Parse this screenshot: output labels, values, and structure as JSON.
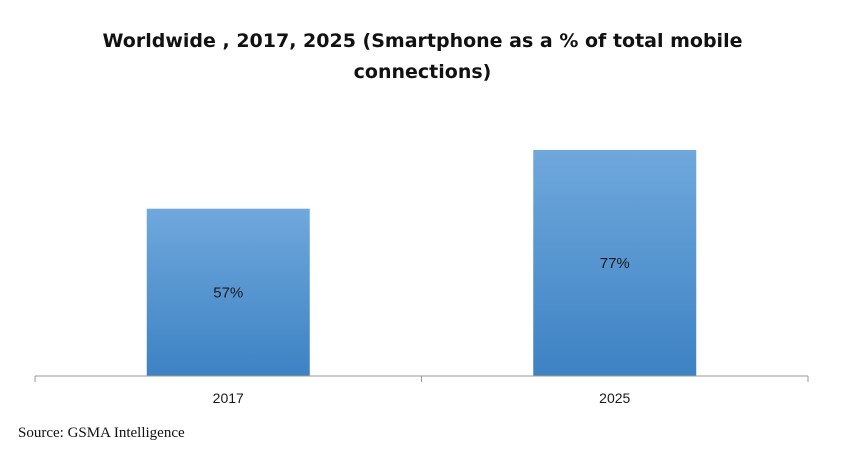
{
  "chart_data": {
    "type": "bar",
    "title": "Worldwide , 2017, 2025 (Smartphone as a % of total mobile connections)",
    "categories": [
      "2017",
      "2025"
    ],
    "values": [
      57,
      77
    ],
    "data_labels": [
      "57%",
      "77%"
    ],
    "xlabel": "",
    "ylabel": "",
    "ylim": [
      0,
      100
    ],
    "grid": false,
    "legend": "none",
    "bar_color": "#5b9bd5",
    "bar_color_light": "#6fa8dc",
    "bar_color_dark": "#3d82c4",
    "axis_color": "#9a9a9a"
  },
  "source": "Source: GSMA Intelligence"
}
